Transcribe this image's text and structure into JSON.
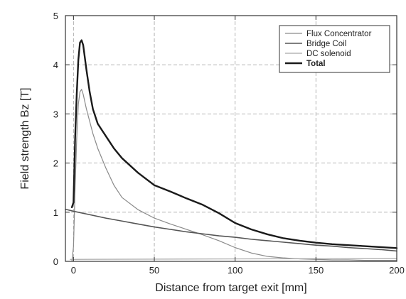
{
  "chart_data": {
    "type": "line",
    "title": "",
    "xlabel": "Distance from target exit [mm]",
    "ylabel": "Field strength Bz [T]",
    "xlim": [
      -5,
      200
    ],
    "ylim": [
      0,
      5
    ],
    "xticks": [
      0,
      50,
      100,
      150,
      200
    ],
    "yticks": [
      0,
      1,
      2,
      3,
      4,
      5
    ],
    "grid": true,
    "legend": "top-right",
    "series": [
      {
        "name": "Flux Concentrator",
        "color": "#8a8a8a",
        "stroke_weight": "thin",
        "x": [
          -1,
          0,
          1,
          2,
          3,
          4,
          5,
          6,
          8,
          10,
          12,
          15,
          20,
          25,
          30,
          40,
          50,
          60,
          70,
          80,
          90,
          100,
          110,
          120,
          130,
          140,
          150,
          160,
          170,
          180,
          190,
          200
        ],
        "y": [
          0.0,
          0.3,
          1.5,
          2.5,
          3.2,
          3.45,
          3.5,
          3.4,
          3.1,
          2.85,
          2.6,
          2.3,
          1.9,
          1.55,
          1.3,
          1.05,
          0.88,
          0.76,
          0.65,
          0.54,
          0.42,
          0.28,
          0.17,
          0.1,
          0.07,
          0.05,
          0.04,
          0.03,
          0.03,
          0.02,
          0.02,
          0.02
        ]
      },
      {
        "name": "Bridge Coil",
        "color": "#555555",
        "stroke_weight": "medium",
        "x": [
          -5,
          0,
          10,
          20,
          30,
          40,
          50,
          60,
          70,
          80,
          90,
          100,
          110,
          120,
          130,
          140,
          150,
          160,
          170,
          180,
          190,
          200
        ],
        "y": [
          1.06,
          1.02,
          0.95,
          0.88,
          0.82,
          0.76,
          0.7,
          0.65,
          0.6,
          0.56,
          0.52,
          0.49,
          0.45,
          0.42,
          0.39,
          0.36,
          0.33,
          0.31,
          0.28,
          0.26,
          0.24,
          0.21
        ]
      },
      {
        "name": "DC solenoid",
        "color": "#a8a8a8",
        "stroke_weight": "thin",
        "x": [
          -2,
          0,
          50,
          100,
          150,
          200
        ],
        "y": [
          0.04,
          0.04,
          0.045,
          0.05,
          0.055,
          0.06
        ]
      },
      {
        "name": "Total",
        "color": "#1a1a1a",
        "stroke_weight": "thick",
        "x": [
          -1,
          0,
          1,
          2,
          3,
          4,
          5,
          6,
          8,
          10,
          12,
          15,
          20,
          25,
          30,
          40,
          50,
          60,
          70,
          80,
          90,
          100,
          110,
          120,
          130,
          140,
          150,
          160,
          170,
          180,
          190,
          200
        ],
        "y": [
          1.1,
          1.2,
          2.5,
          3.4,
          4.1,
          4.45,
          4.5,
          4.4,
          3.9,
          3.45,
          3.1,
          2.8,
          2.55,
          2.3,
          2.1,
          1.8,
          1.55,
          1.42,
          1.28,
          1.15,
          0.98,
          0.78,
          0.65,
          0.55,
          0.47,
          0.42,
          0.38,
          0.35,
          0.33,
          0.31,
          0.29,
          0.27
        ]
      }
    ]
  }
}
